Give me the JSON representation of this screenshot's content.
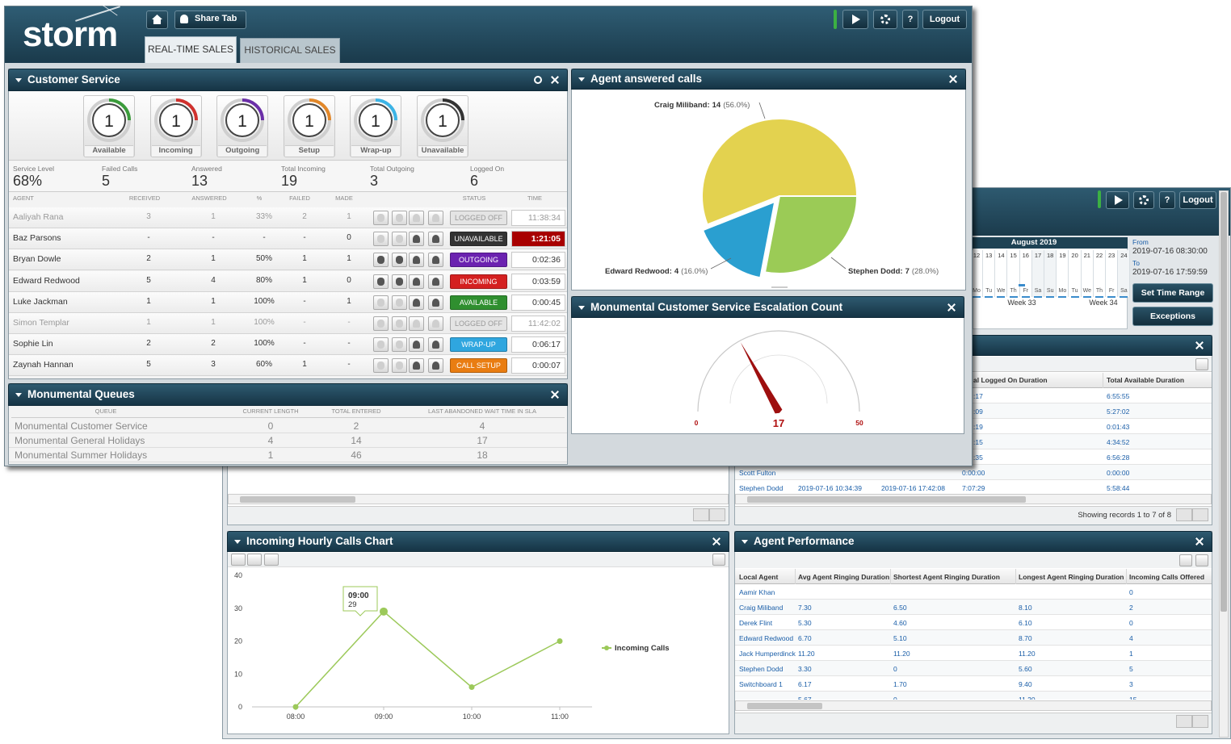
{
  "back_window": {
    "help": "?",
    "logout": "Logout",
    "calendar": {
      "month": "August 2019",
      "days": [
        12,
        13,
        14,
        15,
        16,
        17,
        18,
        19,
        20,
        21,
        22,
        23,
        24
      ],
      "weekdays": [
        "Mo",
        "Tu",
        "We",
        "Th",
        "Fr",
        "Sa",
        "Su",
        "Mo",
        "Tu",
        "We",
        "Th",
        "Fr",
        "Sa"
      ],
      "weeks": [
        "Week 33",
        "Week 34"
      ]
    },
    "time_range": {
      "from_label": "From",
      "from": "2019-07-16 08:30:00",
      "to_label": "To",
      "to": "2019-07-16 17:59:59",
      "set_button": "Set Time Range",
      "exceptions_button": "Exceptions"
    },
    "durations_table": {
      "headers": [
        "al Logged On Duration",
        "Total Available Duration"
      ],
      "rows": [
        {
          "cells": [
            ":17",
            "6:55:55"
          ]
        },
        {
          "cells": [
            ":09",
            "5:27:02"
          ]
        },
        {
          "cells": [
            ":19",
            "0:01:43"
          ]
        },
        {
          "cells": [
            ":15",
            "4:34:52"
          ]
        },
        {
          "cells": [
            ":35",
            "6:56:28"
          ]
        },
        {
          "agent": "Scott Fulton",
          "cells": [
            "0:00:00",
            "0:00:00"
          ]
        },
        {
          "agent": "Stephen Dodd",
          "cells": [
            "2019-07-16 10:34:39",
            "2019-07-16 17:42:08",
            "7:07:29",
            "5:58:44"
          ]
        }
      ],
      "footer": "Showing records 1 to 7 of 8"
    },
    "hourly_chart": {
      "type": "line",
      "title": "Incoming Hourly Calls Chart",
      "categories": [
        "08:00",
        "09:00",
        "10:00",
        "11:00"
      ],
      "series": [
        {
          "name": "Incoming Calls",
          "color": "#9cc95a",
          "values": [
            0,
            29,
            6,
            20
          ]
        }
      ],
      "ylim": [
        0,
        40
      ],
      "yticks": [
        0,
        10,
        20,
        30,
        40
      ]
    },
    "agent_performance": {
      "title": "Agent Performance",
      "headers": [
        "Local Agent",
        "Avg Agent Ringing Duration",
        "Shortest Agent Ringing Duration",
        "Longest Agent Ringing Duration",
        "Incoming Calls Offered"
      ],
      "rows": [
        [
          "Aamir Khan",
          null,
          null,
          null,
          "0"
        ],
        [
          "Craig Miliband",
          "7.30",
          "6.50",
          "8.10",
          "2"
        ],
        [
          "Derek Flint",
          "5.30",
          "4.60",
          "6.10",
          "0"
        ],
        [
          "Edward Redwood",
          "6.70",
          "5.10",
          "8.70",
          "4"
        ],
        [
          "Jack Humperdinck",
          "11.20",
          "11.20",
          "11.20",
          "1"
        ],
        [
          "Stephen Dodd",
          "3.30",
          "0",
          "5.60",
          "5"
        ],
        [
          "Switchboard 1",
          "6.17",
          "1.70",
          "9.40",
          "3"
        ],
        [
          null,
          "5.67",
          "0",
          "11.20",
          "15"
        ]
      ]
    }
  },
  "front_window": {
    "logo": "storm",
    "share_tab": "Share Tab",
    "tabs": [
      "REAL-TIME SALES",
      "HISTORICAL SALES"
    ],
    "help": "?",
    "logout": "Logout",
    "customer_service": {
      "title": "Customer Service",
      "gauges": [
        {
          "label": "Available",
          "value": 1,
          "color": "#3b9b3b"
        },
        {
          "label": "Incoming",
          "value": 1,
          "color": "#d0312d"
        },
        {
          "label": "Outgoing",
          "value": 1,
          "color": "#6b2fa8"
        },
        {
          "label": "Setup",
          "value": 1,
          "color": "#e2882a"
        },
        {
          "label": "Wrap-up",
          "value": 1,
          "color": "#3cb4e6"
        },
        {
          "label": "Unavailable",
          "value": 1,
          "color": "#333333"
        }
      ],
      "stats": [
        {
          "label": "Service Level",
          "value": "68%"
        },
        {
          "label": "Failed Calls",
          "value": 5
        },
        {
          "label": "Answered",
          "value": 13
        },
        {
          "label": "Total Incoming",
          "value": 19
        },
        {
          "label": "Total Outgoing",
          "value": 3
        },
        {
          "label": "Logged On",
          "value": 6
        }
      ],
      "agent_table": {
        "headers": [
          "Agent",
          "Received",
          "Answered",
          "%",
          "Failed",
          "Made",
          "Status",
          "Time"
        ],
        "rows": [
          {
            "cells": [
              "Aaliyah Rana",
              3,
              1,
              "33%",
              2,
              1
            ],
            "status": "LOGGED OFF",
            "status_color": "#e4e4e4",
            "time": "11:38:34",
            "dimmed": true
          },
          {
            "cells": [
              "Baz Parsons",
              "-",
              "-",
              "-",
              "-",
              0
            ],
            "status": "UNAVAILABLE",
            "status_color": "#333333",
            "time": "1:21:05",
            "alert": true
          },
          {
            "cells": [
              "Bryan Dowle",
              2,
              1,
              "50%",
              1,
              1
            ],
            "status": "OUTGOING",
            "status_color": "#6b22b0",
            "time": "0:02:36"
          },
          {
            "cells": [
              "Edward Redwood",
              5,
              4,
              "80%",
              1,
              0
            ],
            "status": "INCOMING",
            "status_color": "#d42020",
            "time": "0:03:59"
          },
          {
            "cells": [
              "Luke Jackman",
              1,
              1,
              "100%",
              "-",
              1
            ],
            "status": "AVAILABLE",
            "status_color": "#2f8f2f",
            "time": "0:00:45"
          },
          {
            "cells": [
              "Simon Templar",
              1,
              1,
              "100%",
              "-",
              "-"
            ],
            "status": "LOGGED OFF",
            "status_color": "#e4e4e4",
            "time": "11:42:02",
            "dimmed": true
          },
          {
            "cells": [
              "Sophie Lin",
              2,
              2,
              "100%",
              "-",
              "-"
            ],
            "status": "WRAP-UP",
            "status_color": "#2fa6df",
            "time": "0:06:17"
          },
          {
            "cells": [
              "Zaynah Hannan",
              5,
              3,
              "60%",
              1,
              "-"
            ],
            "status": "CALL SETUP",
            "status_color": "#e97d12",
            "time": "0:00:07"
          }
        ]
      }
    },
    "queues": {
      "title": "Monumental Queues",
      "headers": [
        "Queue",
        "Current Length",
        "Total Entered",
        "Last Abandoned Wait Time in SLA"
      ],
      "rows": [
        [
          "Monumental Customer Service",
          0,
          2,
          4
        ],
        [
          "Monumental General Holidays",
          4,
          14,
          17
        ],
        [
          "Monumental Summer Holidays",
          1,
          46,
          18
        ]
      ]
    },
    "agent_answered_calls": {
      "type": "pie",
      "title": "Agent answered calls",
      "slices": [
        {
          "label": "Craig Miliband:",
          "value": 14,
          "percent_label": "(56.0%)",
          "color": "#e3d24f"
        },
        {
          "label": "Stephen Dodd:",
          "value": 7,
          "percent_label": "(28.0%)",
          "color": "#9bcb56"
        },
        {
          "label": "Edward Redwood:",
          "value": 4,
          "percent_label": "(16.0%)",
          "color": "#2a9fd0"
        }
      ]
    },
    "escalation_gauge": {
      "type": "gauge",
      "title": "Monumental Customer Service Escalation Count",
      "min": 0,
      "max": 50,
      "value": 17
    }
  }
}
